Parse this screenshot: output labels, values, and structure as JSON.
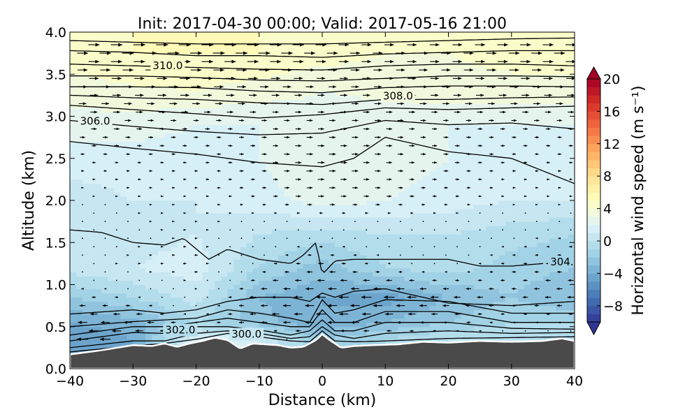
{
  "chart_data": {
    "type": "heatmap",
    "title": "Init: 2017-04-30 00:00; Valid: 2017-05-16 21:00",
    "xlabel": "Distance (km)",
    "ylabel": "Altitude (km)",
    "xlim": [
      -40,
      40
    ],
    "ylim": [
      0.0,
      4.0
    ],
    "x_ticks": [
      -40,
      -30,
      -20,
      -10,
      0,
      10,
      20,
      30,
      40
    ],
    "x_tick_labels": [
      "−40",
      "−30",
      "−20",
      "−10",
      "0",
      "10",
      "20",
      "30",
      "40"
    ],
    "y_ticks": [
      0.0,
      0.5,
      1.0,
      1.5,
      2.0,
      2.5,
      3.0,
      3.5,
      4.0
    ],
    "y_tick_labels": [
      "0.0",
      "0.5",
      "1.0",
      "1.5",
      "2.0",
      "2.5",
      "3.0",
      "3.5",
      "4.0"
    ],
    "colorbar": {
      "label": "Horizontal wind speed (m s⁻¹)",
      "range": [
        -10,
        20
      ],
      "step": 1,
      "extend": "both",
      "ticks": [
        -8,
        -4,
        0,
        4,
        8,
        12,
        16,
        20
      ],
      "tick_labels": [
        "−8",
        "−4",
        "0",
        "4",
        "8",
        "12",
        "16",
        "20"
      ],
      "colormap": [
        "#313695",
        "#4575b4",
        "#74add1",
        "#abd9e9",
        "#e0f3f8",
        "#ffffbf",
        "#fee090",
        "#fdae61",
        "#f46d43",
        "#d73027",
        "#a50026"
      ]
    },
    "wind_field": {
      "x": [
        -40,
        -30,
        -20,
        -10,
        0,
        10,
        20,
        30,
        40
      ],
      "levels": [
        {
          "z": 3.75,
          "u": [
            4.5,
            5,
            5,
            5,
            4.5,
            4,
            4,
            4.5,
            4.5
          ]
        },
        {
          "z": 3.3,
          "u": [
            3.5,
            3.8,
            4,
            3.5,
            3,
            3.2,
            3.5,
            3.5,
            3.5
          ]
        },
        {
          "z": 2.9,
          "u": [
            2.5,
            2.5,
            2,
            2,
            2.5,
            2.5,
            2,
            2,
            2
          ]
        },
        {
          "z": 2.5,
          "u": [
            1.5,
            1.5,
            1.5,
            2,
            3,
            2.5,
            2,
            1.5,
            1.5
          ]
        },
        {
          "z": 2.0,
          "u": [
            0.5,
            1,
            1,
            1.5,
            2.5,
            2,
            1.5,
            1,
            1
          ]
        },
        {
          "z": 1.6,
          "u": [
            0.3,
            0.5,
            1,
            0,
            -0.5,
            0,
            0,
            -0.5,
            -1
          ]
        },
        {
          "z": 1.2,
          "u": [
            0.5,
            1,
            1.5,
            -1,
            -2.5,
            -1,
            -0.5,
            -1.5,
            -2
          ]
        },
        {
          "z": 0.85,
          "u": [
            -2,
            -1,
            0.5,
            -3,
            -4,
            -4.5,
            -3,
            -2,
            -3
          ]
        },
        {
          "z": 0.55,
          "u": [
            -4,
            -3.5,
            -1,
            -2.5,
            -4,
            -3,
            -2,
            -1,
            -1
          ]
        },
        {
          "z": 0.35,
          "u": [
            -5,
            -4,
            2,
            1,
            -2,
            -1,
            0,
            0,
            0
          ]
        }
      ]
    },
    "terrain": {
      "x": [
        -40,
        -35,
        -30,
        -27,
        -25,
        -23,
        -21,
        -19,
        -17,
        -15,
        -13,
        -11,
        -9,
        -7,
        -5,
        -3,
        -1,
        0,
        1,
        3,
        5,
        8,
        12,
        16,
        20,
        25,
        30,
        35,
        38,
        40
      ],
      "z": [
        0.17,
        0.22,
        0.28,
        0.27,
        0.3,
        0.26,
        0.3,
        0.33,
        0.37,
        0.34,
        0.24,
        0.3,
        0.29,
        0.28,
        0.25,
        0.26,
        0.34,
        0.41,
        0.35,
        0.25,
        0.27,
        0.28,
        0.29,
        0.32,
        0.31,
        0.33,
        0.32,
        0.33,
        0.36,
        0.33
      ]
    },
    "isentropes": [
      {
        "level": "300.0",
        "label": "300.0",
        "x": [
          -40,
          -30,
          -25,
          -20,
          -15,
          -10,
          -5,
          -2,
          0,
          2,
          5,
          10,
          20,
          30,
          40
        ],
        "z": [
          0.2,
          0.27,
          0.3,
          0.35,
          0.42,
          0.38,
          0.33,
          0.32,
          0.45,
          0.33,
          0.32,
          0.33,
          0.36,
          0.37,
          0.38
        ]
      },
      {
        "level": "301.0",
        "x": [
          -40,
          -30,
          -25,
          -20,
          -15,
          -10,
          -5,
          -2,
          0,
          2,
          5,
          10,
          20,
          30,
          40
        ],
        "z": [
          0.25,
          0.33,
          0.33,
          0.42,
          0.45,
          0.42,
          0.36,
          0.38,
          0.5,
          0.4,
          0.36,
          0.42,
          0.45,
          0.42,
          0.43
        ]
      },
      {
        "level": "302.0",
        "label": "302.0",
        "x": [
          -40,
          -30,
          -25,
          -20,
          -15,
          -10,
          -5,
          -2,
          0,
          2,
          5,
          10,
          20,
          30,
          40
        ],
        "z": [
          0.33,
          0.43,
          0.42,
          0.5,
          0.5,
          0.46,
          0.4,
          0.45,
          0.58,
          0.45,
          0.45,
          0.55,
          0.55,
          0.48,
          0.47
        ]
      },
      {
        "level": "302.5",
        "x": [
          -40,
          -30,
          -25,
          -20,
          -15,
          -10,
          -5,
          -2,
          0,
          2,
          5,
          10,
          20,
          30,
          40
        ],
        "z": [
          0.4,
          0.5,
          0.5,
          0.55,
          0.6,
          0.55,
          0.5,
          0.5,
          0.7,
          0.55,
          0.55,
          0.68,
          0.68,
          0.55,
          0.55
        ]
      },
      {
        "level": "303.0",
        "x": [
          -40,
          -30,
          -25,
          -20,
          -15,
          -10,
          -5,
          -2,
          0,
          2,
          5,
          10,
          20,
          30,
          40
        ],
        "z": [
          0.5,
          0.56,
          0.58,
          0.6,
          0.7,
          0.66,
          0.6,
          0.55,
          0.82,
          0.66,
          0.7,
          0.82,
          0.8,
          0.66,
          0.66
        ]
      },
      {
        "level": "303.5",
        "x": [
          -40,
          -30,
          -25,
          -20,
          -15,
          -10,
          -5,
          -2,
          0,
          2,
          5,
          10,
          20,
          30,
          40
        ],
        "z": [
          0.65,
          0.7,
          0.66,
          0.7,
          0.8,
          0.85,
          0.85,
          0.8,
          0.9,
          0.85,
          0.92,
          0.95,
          0.78,
          0.75,
          0.8
        ]
      },
      {
        "level": "304.0",
        "label": "304.",
        "x": [
          -40,
          -35,
          -30,
          -25,
          -22,
          -18,
          -15,
          -10,
          -5,
          -3,
          -1,
          0,
          2,
          5,
          10,
          20,
          25,
          30,
          35
        ],
        "z": [
          1.65,
          1.62,
          1.5,
          1.47,
          1.55,
          1.3,
          1.42,
          1.3,
          1.25,
          1.35,
          1.5,
          1.12,
          1.28,
          1.3,
          1.3,
          1.3,
          1.22,
          1.22,
          1.25
        ]
      },
      {
        "level": "305.0",
        "x": [
          -40,
          -30,
          -20,
          -10,
          0,
          5,
          10,
          20,
          30,
          40
        ],
        "z": [
          2.7,
          2.62,
          2.55,
          2.45,
          2.4,
          2.5,
          2.75,
          2.58,
          2.5,
          2.2
        ]
      },
      {
        "level": "306.0",
        "label": "306.0",
        "x": [
          -40,
          -30,
          -20,
          -10,
          0,
          10,
          20,
          30,
          40
        ],
        "z": [
          2.95,
          2.88,
          2.82,
          2.78,
          2.8,
          2.95,
          2.9,
          2.92,
          2.85
        ]
      },
      {
        "level": "306.5",
        "x": [
          -40,
          -30,
          -20,
          -10,
          0,
          10,
          20,
          30,
          40
        ],
        "z": [
          3.13,
          3.08,
          3.03,
          2.98,
          3.02,
          3.1,
          3.08,
          3.1,
          3.12
        ]
      },
      {
        "level": "307.0",
        "x": [
          -40,
          -30,
          -20,
          -10,
          0,
          10,
          20,
          30,
          40
        ],
        "z": [
          3.25,
          3.22,
          3.2,
          3.16,
          3.14,
          3.2,
          3.2,
          3.22,
          3.23
        ]
      },
      {
        "level": "308.0",
        "label": "308.0",
        "x": [
          -40,
          -30,
          -20,
          -10,
          0,
          10,
          20,
          30,
          40
        ],
        "z": [
          3.35,
          3.35,
          3.34,
          3.3,
          3.28,
          3.34,
          3.36,
          3.36,
          3.35
        ]
      },
      {
        "level": "309.0",
        "x": [
          -40,
          -30,
          -20,
          -10,
          0,
          10,
          20,
          30,
          40
        ],
        "z": [
          3.48,
          3.48,
          3.46,
          3.43,
          3.42,
          3.45,
          3.48,
          3.48,
          3.47
        ]
      },
      {
        "level": "310.0",
        "label": "310.0",
        "x": [
          -40,
          -30,
          -20,
          -10,
          0,
          10,
          20,
          30,
          40
        ],
        "z": [
          3.62,
          3.6,
          3.58,
          3.56,
          3.55,
          3.6,
          3.62,
          3.62,
          3.6
        ]
      },
      {
        "level": "311.0",
        "x": [
          -40,
          -30,
          -20,
          -10,
          0,
          10,
          20,
          30,
          40
        ],
        "z": [
          3.78,
          3.76,
          3.72,
          3.72,
          3.7,
          3.74,
          3.76,
          3.78,
          3.78
        ]
      },
      {
        "level": "312.0",
        "x": [
          -40,
          -30,
          -20,
          -10,
          0,
          10,
          20,
          30,
          40
        ],
        "z": [
          3.9,
          3.88,
          3.86,
          3.86,
          3.86,
          3.88,
          3.9,
          3.92,
          3.93
        ]
      }
    ],
    "contour_labels": [
      {
        "text": "310.0",
        "x": -24.5,
        "z": 3.6
      },
      {
        "text": "308.0",
        "x": 12.0,
        "z": 3.24
      },
      {
        "text": "306.0",
        "x": -36.0,
        "z": 2.94
      },
      {
        "text": "304.",
        "x": 38.0,
        "z": 1.27
      },
      {
        "text": "302.0",
        "x": -22.5,
        "z": 0.46
      },
      {
        "text": "300.0",
        "x": -12.0,
        "z": 0.41
      }
    ]
  }
}
